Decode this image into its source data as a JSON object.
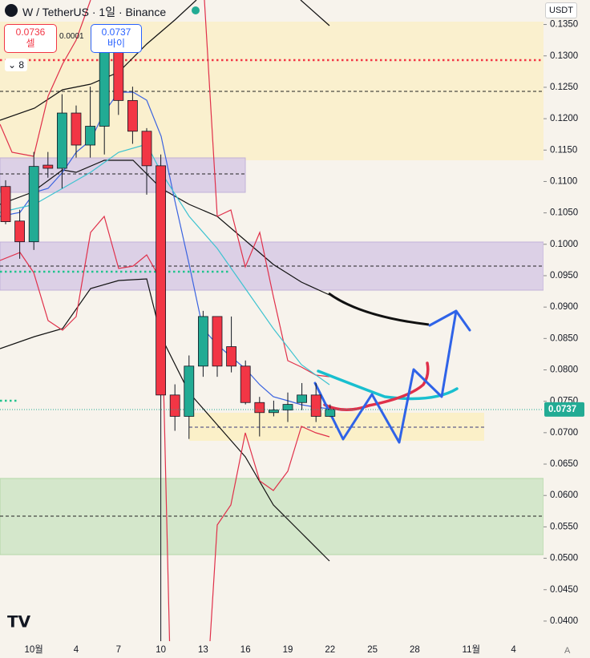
{
  "header": {
    "title": "W / TetherUS · 1일 · Binance",
    "sell_price": "0.0736",
    "sell_label": "셀",
    "spread": "0.0001",
    "buy_price": "0.0737",
    "buy_label": "바이",
    "indicator_count": "8",
    "currency": "USDT",
    "auto_label": "A"
  },
  "chart_data": {
    "type": "candlestick",
    "up_color": "#22ab94",
    "down_color": "#f23645",
    "categories": [
      null,
      null,
      "10월",
      null,
      null,
      "4",
      null,
      null,
      "7",
      null,
      null,
      "10",
      null,
      null,
      "13",
      null,
      null,
      "16",
      null,
      null,
      "19",
      null,
      null,
      "22",
      null,
      null,
      "25",
      null,
      null,
      "28",
      null,
      null,
      null,
      "11월",
      null,
      null,
      "4",
      null,
      null
    ],
    "open": [
      0.1092,
      0.1037,
      0.1004,
      0.1126,
      0.1121,
      0.1209,
      0.1158,
      0.1188,
      0.1306,
      0.1229,
      0.118,
      0.1125,
      0.076,
      0.0726,
      0.0806,
      0.0885,
      0.0837,
      0.0806,
      0.0748,
      0.0732,
      0.0736,
      0.0748,
      0.076,
      0.0726,
      null,
      null,
      null,
      null,
      null,
      null,
      null,
      null,
      null,
      null,
      null,
      null,
      null,
      null,
      null
    ],
    "high": [
      0.1102,
      0.1055,
      0.1147,
      0.1147,
      0.1239,
      0.1221,
      0.1251,
      0.1338,
      0.1323,
      0.1251,
      0.1185,
      0.1143,
      0.0777,
      0.0823,
      0.0894,
      0.0885,
      0.0885,
      0.0815,
      0.0757,
      0.0751,
      0.0764,
      0.0779,
      0.0779,
      0.0745,
      null,
      null,
      null,
      null,
      null,
      null,
      null,
      null,
      null,
      null,
      null,
      null,
      null,
      null,
      null
    ],
    "low": [
      0.1032,
      0.0977,
      0.0991,
      0.1106,
      0.1089,
      0.1138,
      0.1138,
      0.1143,
      0.1206,
      0.116,
      0.1079,
      0.0368,
      0.0703,
      0.069,
      0.0789,
      0.0789,
      0.0796,
      0.0745,
      0.0694,
      0.0726,
      0.0717,
      0.0736,
      0.0717,
      0.0725,
      null,
      null,
      null,
      null,
      null,
      null,
      null,
      null,
      null,
      null,
      null,
      null,
      null,
      null,
      null
    ],
    "close": [
      0.1036,
      0.1004,
      0.1124,
      0.1121,
      0.1209,
      0.1158,
      0.1188,
      0.1313,
      0.1229,
      0.118,
      0.1125,
      0.076,
      0.0726,
      0.0806,
      0.0885,
      0.0806,
      0.0806,
      0.0748,
      0.0732,
      0.0736,
      0.0745,
      0.076,
      0.0726,
      0.0737,
      null,
      null,
      null,
      null,
      null,
      null,
      null,
      null,
      null,
      null,
      null,
      null,
      null,
      null,
      null
    ],
    "last_price": 0.0737,
    "ylim": [
      0.0368,
      0.1389
    ],
    "yticks": [
      {
        "value": 0.135,
        "label": "0.1350"
      },
      {
        "value": 0.13,
        "label": "0.1300"
      },
      {
        "value": 0.125,
        "label": "0.1250"
      },
      {
        "value": 0.12,
        "label": "0.1200"
      },
      {
        "value": 0.115,
        "label": "0.1150"
      },
      {
        "value": 0.11,
        "label": "0.1100"
      },
      {
        "value": 0.105,
        "label": "0.1050"
      },
      {
        "value": 0.1,
        "label": "0.1000"
      },
      {
        "value": 0.095,
        "label": "0.0950"
      },
      {
        "value": 0.09,
        "label": "0.0900"
      },
      {
        "value": 0.085,
        "label": "0.0850"
      },
      {
        "value": 0.08,
        "label": "0.0800"
      },
      {
        "value": 0.075,
        "label": "0.0750"
      },
      {
        "value": 0.07,
        "label": "0.0700"
      },
      {
        "value": 0.065,
        "label": "0.0650"
      },
      {
        "value": 0.06,
        "label": "0.0600"
      },
      {
        "value": 0.055,
        "label": "0.0550"
      },
      {
        "value": 0.05,
        "label": "0.0500"
      },
      {
        "value": 0.045,
        "label": "0.0450"
      },
      {
        "value": 0.04,
        "label": "0.0400"
      }
    ]
  }
}
